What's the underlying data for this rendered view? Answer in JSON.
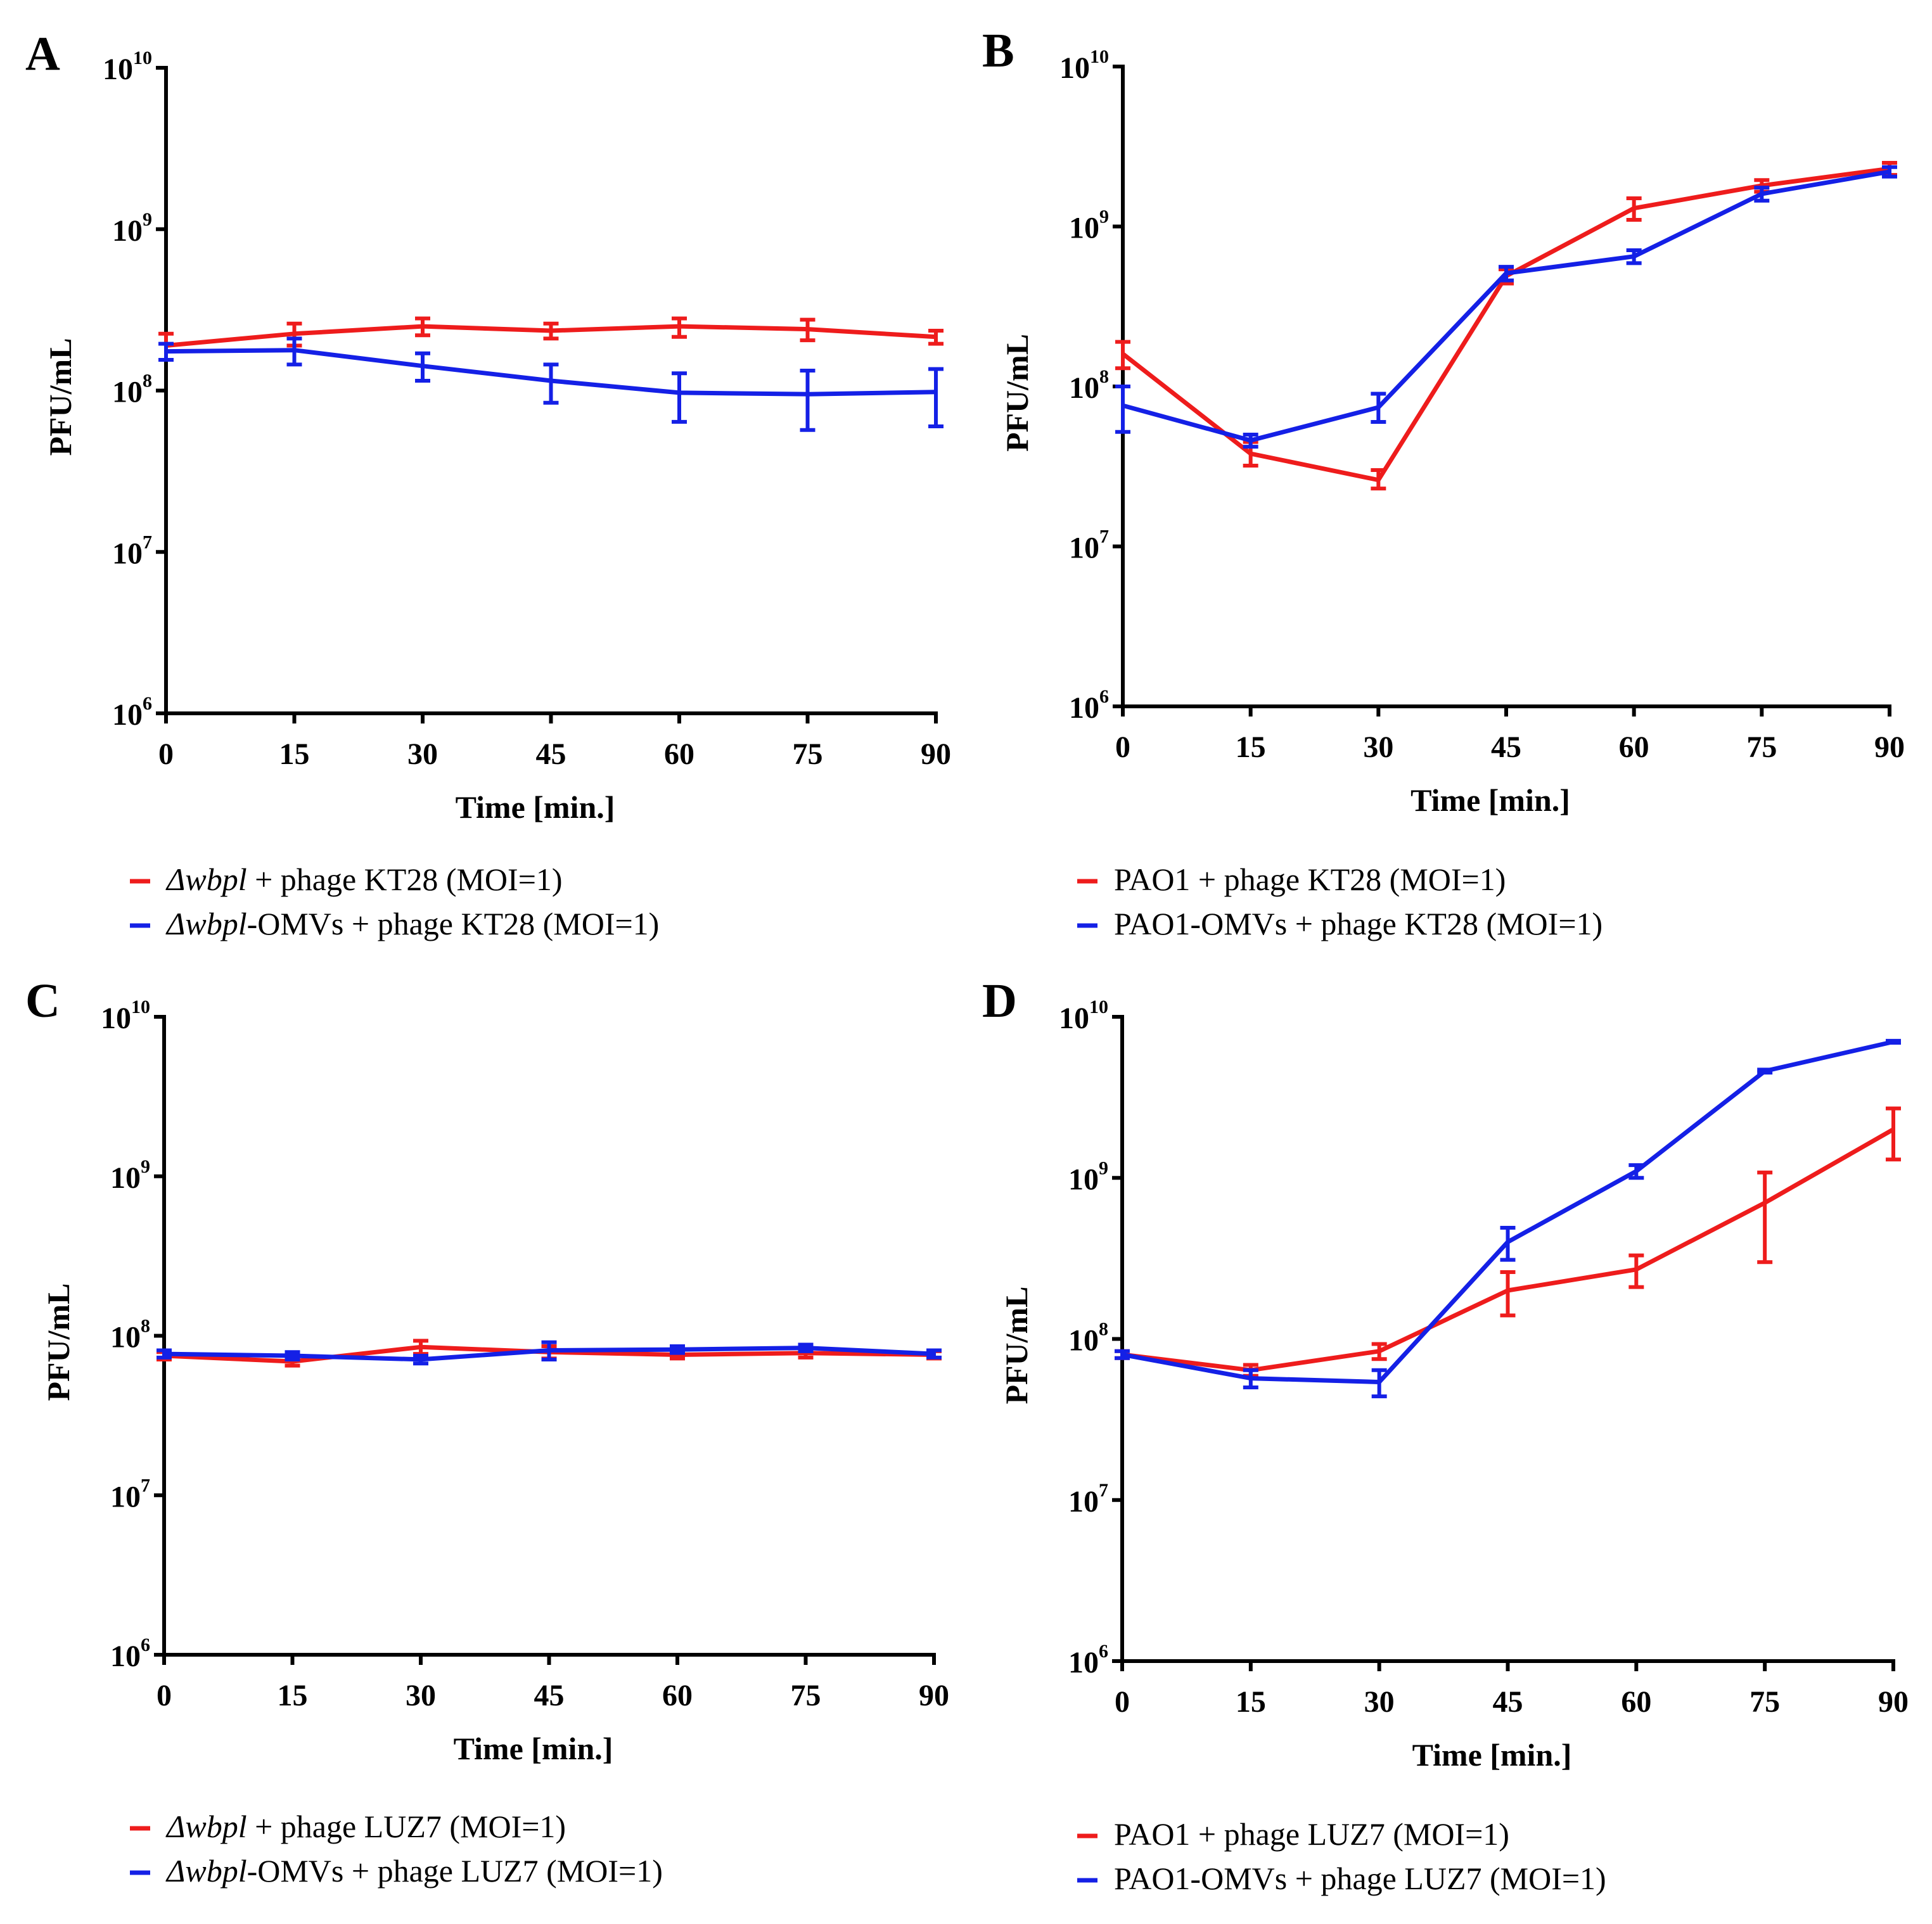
{
  "colors": {
    "red": "#ee1c1c",
    "blue": "#1420e6"
  },
  "chart_data": [
    {
      "panel": "A",
      "type": "line",
      "xlabel": "Time [min.]",
      "ylabel": "PFU/mL",
      "yscale": "log",
      "ylim": [
        1000000,
        10000000000
      ],
      "xlim": [
        0,
        90
      ],
      "x": [
        0,
        15,
        30,
        45,
        60,
        75,
        90
      ],
      "x_tick_labels": [
        "0",
        "15",
        "30",
        "45",
        "60",
        "75",
        "90"
      ],
      "y_tick_labels": [
        {
          "base": "10",
          "exp": "6"
        },
        {
          "base": "10",
          "exp": "7"
        },
        {
          "base": "10",
          "exp": "8"
        },
        {
          "base": "10",
          "exp": "9"
        },
        {
          "base": "10",
          "exp": "10"
        }
      ],
      "series": [
        {
          "color_key": "red",
          "legend": {
            "italic": "Δwbpl",
            "text": " + phage KT28 (MOI=1)"
          },
          "values": [
            190000000,
            225000000,
            250000000,
            235000000,
            250000000,
            240000000,
            215000000
          ],
          "err_low": [
            155000000,
            190000000,
            220000000,
            210000000,
            215000000,
            205000000,
            195000000
          ],
          "err_high": [
            225000000,
            260000000,
            280000000,
            260000000,
            280000000,
            275000000,
            235000000
          ]
        },
        {
          "color_key": "blue",
          "legend": {
            "italic": "Δwbpl",
            "text": "-OMVs + phage KT28 (MOI=1)"
          },
          "values": [
            175000000,
            178000000,
            142000000,
            115000000,
            97000000,
            95000000,
            98000000
          ],
          "err_low": [
            155000000,
            145000000,
            115000000,
            84000000,
            64000000,
            57000000,
            60000000
          ],
          "err_high": [
            195000000,
            210000000,
            170000000,
            145000000,
            128000000,
            133000000,
            136000000
          ]
        }
      ]
    },
    {
      "panel": "B",
      "type": "line",
      "xlabel": "Time [min.]",
      "ylabel": "PFU/mL",
      "yscale": "log",
      "ylim": [
        1000000,
        10000000000
      ],
      "xlim": [
        0,
        90
      ],
      "x": [
        0,
        15,
        30,
        45,
        60,
        75,
        90
      ],
      "x_tick_labels": [
        "0",
        "15",
        "30",
        "45",
        "60",
        "75",
        "90"
      ],
      "y_tick_labels": [
        {
          "base": "10",
          "exp": "6"
        },
        {
          "base": "10",
          "exp": "7"
        },
        {
          "base": "10",
          "exp": "8"
        },
        {
          "base": "10",
          "exp": "9"
        },
        {
          "base": "10",
          "exp": "10"
        }
      ],
      "series": [
        {
          "color_key": "red",
          "legend": {
            "italic": "",
            "text": "PAO1 + phage KT28 (MOI=1)"
          },
          "values": [
            160000000,
            38000000,
            26000000,
            490000000,
            1300000000,
            1800000000,
            2300000000
          ],
          "err_low": [
            130000000,
            32000000,
            23000000,
            440000000,
            1100000000,
            1650000000,
            2100000000
          ],
          "err_high": [
            190000000,
            45000000,
            30000000,
            540000000,
            1500000000,
            1950000000,
            2500000000
          ]
        },
        {
          "color_key": "blue",
          "legend": {
            "italic": "",
            "text": "PAO1-OMVs + phage KT28 (MOI=1)"
          },
          "values": [
            76000000,
            46000000,
            74000000,
            510000000,
            650000000,
            1600000000,
            2200000000
          ],
          "err_low": [
            52000000,
            42000000,
            60000000,
            460000000,
            590000000,
            1450000000,
            2050000000
          ],
          "err_high": [
            100000000,
            50000000,
            90000000,
            560000000,
            710000000,
            1750000000,
            2350000000
          ]
        }
      ]
    },
    {
      "panel": "C",
      "type": "line",
      "xlabel": "Time [min.]",
      "ylabel": "PFU/mL",
      "yscale": "log",
      "ylim": [
        1000000,
        10000000000
      ],
      "xlim": [
        0,
        90
      ],
      "x": [
        0,
        15,
        30,
        45,
        60,
        75,
        90
      ],
      "x_tick_labels": [
        "0",
        "15",
        "30",
        "45",
        "60",
        "75",
        "90"
      ],
      "y_tick_labels": [
        {
          "base": "10",
          "exp": "6"
        },
        {
          "base": "10",
          "exp": "7"
        },
        {
          "base": "10",
          "exp": "8"
        },
        {
          "base": "10",
          "exp": "9"
        },
        {
          "base": "10",
          "exp": "10"
        }
      ],
      "series": [
        {
          "color_key": "red",
          "legend": {
            "italic": "Δwbpl",
            "text": " + phage LUZ7 (MOI=1)"
          },
          "values": [
            75000000,
            69000000,
            85000000,
            79000000,
            76000000,
            78000000,
            76000000
          ],
          "err_low": [
            71000000,
            65000000,
            77000000,
            72000000,
            72000000,
            73000000,
            72000000
          ],
          "err_high": [
            79000000,
            73000000,
            93000000,
            86000000,
            80000000,
            83000000,
            80000000
          ]
        },
        {
          "color_key": "blue",
          "legend": {
            "italic": "Δwbpl",
            "text": "-OMVs + phage LUZ7 (MOI=1)"
          },
          "values": [
            77000000,
            75000000,
            71000000,
            81000000,
            82000000,
            84000000,
            77000000
          ],
          "err_low": [
            73000000,
            71000000,
            67000000,
            71000000,
            78000000,
            80000000,
            73000000
          ],
          "err_high": [
            81000000,
            79000000,
            75000000,
            91000000,
            86000000,
            88000000,
            81000000
          ]
        }
      ]
    },
    {
      "panel": "D",
      "type": "line",
      "xlabel": "Time [min.]",
      "ylabel": "PFU/mL",
      "yscale": "log",
      "ylim": [
        1000000,
        10000000000
      ],
      "xlim": [
        0,
        90
      ],
      "x": [
        0,
        15,
        30,
        45,
        60,
        75,
        90
      ],
      "x_tick_labels": [
        "0",
        "15",
        "30",
        "45",
        "60",
        "75",
        "90"
      ],
      "y_tick_labels": [
        {
          "base": "10",
          "exp": "6"
        },
        {
          "base": "10",
          "exp": "7"
        },
        {
          "base": "10",
          "exp": "8"
        },
        {
          "base": "10",
          "exp": "9"
        },
        {
          "base": "10",
          "exp": "10"
        }
      ],
      "series": [
        {
          "color_key": "red",
          "legend": {
            "italic": "",
            "text": "PAO1 + phage LUZ7 (MOI=1)"
          },
          "values": [
            80000000,
            64000000,
            84000000,
            200000000,
            270000000,
            700000000,
            2000000000
          ],
          "err_low": [
            76000000,
            59000000,
            75000000,
            140000000,
            210000000,
            300000000,
            1300000000
          ],
          "err_high": [
            84000000,
            69000000,
            93000000,
            260000000,
            330000000,
            1080000000,
            2700000000
          ]
        },
        {
          "color_key": "blue",
          "legend": {
            "italic": "",
            "text": "PAO1-OMVs + phage LUZ7 (MOI=1)"
          },
          "values": [
            80000000,
            57000000,
            54000000,
            400000000,
            1100000000,
            4600000000,
            7000000000
          ],
          "err_low": [
            76000000,
            50000000,
            44000000,
            310000000,
            1000000000,
            4500000000,
            6900000000
          ],
          "err_high": [
            84000000,
            64000000,
            64000000,
            490000000,
            1200000000,
            4700000000,
            7100000000
          ]
        }
      ]
    }
  ]
}
